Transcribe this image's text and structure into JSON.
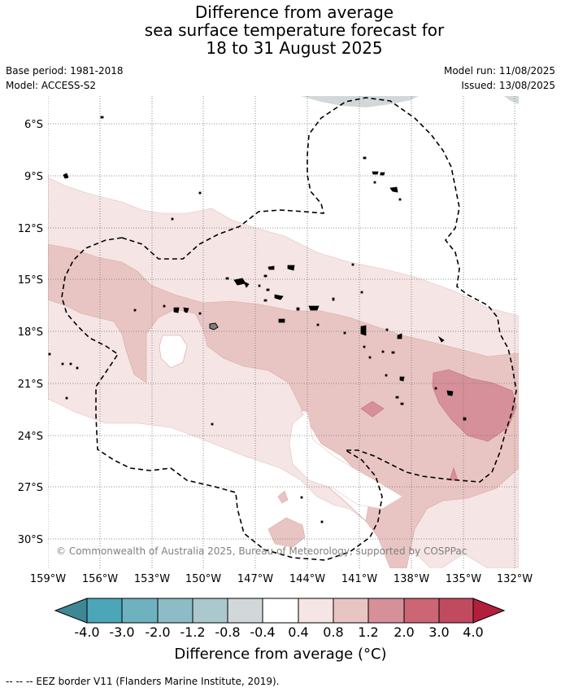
{
  "title": {
    "line1": "Difference from average",
    "line2": "sea surface temperature forecast for",
    "line3": "18 to 31 August 2025"
  },
  "meta": {
    "base_period": "Base period: 1981-2018",
    "model": "Model: ACCESS-S2",
    "model_run": "Model run: 11/08/2025",
    "issued": "Issued: 13/08/2025"
  },
  "map": {
    "lat_labels": [
      "6°S",
      "9°S",
      "12°S",
      "15°S",
      "18°S",
      "21°S",
      "24°S",
      "27°S",
      "30°S"
    ],
    "lon_labels": [
      "159°W",
      "156°W",
      "153°W",
      "150°W",
      "147°W",
      "144°W",
      "141°W",
      "138°W",
      "135°W",
      "132°W"
    ],
    "copyright": "© Commonwealth of Australia 2025, Bureau of Meteorology, supported by COSPPac"
  },
  "colorbar": {
    "labels": [
      "-4.0",
      "-3.0",
      "-2.0",
      "-1.2",
      "-0.8",
      "-0.4",
      "0.4",
      "0.8",
      "1.2",
      "2.0",
      "3.0",
      "4.0"
    ],
    "colors": [
      "#4ba7b7",
      "#6eb1bf",
      "#8ebcc6",
      "#abc9cd",
      "#d2d8da",
      "#ffffff",
      "#f5e5e4",
      "#e8c5c3",
      "#d6909a",
      "#cc6574",
      "#c24a5f"
    ],
    "under_color": "#3e8893",
    "over_color": "#b21f3c",
    "title": "Difference from average (°C)"
  },
  "footer": "--  --  -- EEZ border V11 (Flanders Marine Institute, 2019)."
}
